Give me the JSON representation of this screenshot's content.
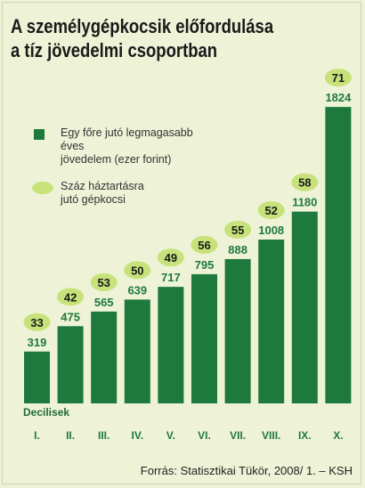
{
  "title_lines": [
    "A személygépkocsik előfordulása",
    "a tíz jövedelmi csoportban"
  ],
  "legend": {
    "income_label": "Egy főre jutó legmagasabb éves\njövedelem (ezer forint)",
    "cars_label": "Száz háztartásra\njutó gépkocsi"
  },
  "x_axis_title": "Decilisek",
  "source": "Forrás: Statisztikai Tükör, 2008/ 1. – KSH",
  "colors": {
    "bar": "#1e7a3c",
    "oval": "#c7e27a",
    "background": "#eef2d6",
    "value_label": "#1e7a3c"
  },
  "chart_data": {
    "type": "bar",
    "categories": [
      "I.",
      "II.",
      "III.",
      "IV.",
      "V.",
      "VI.",
      "VII.",
      "VIII.",
      "IX.",
      "X."
    ],
    "series": [
      {
        "name": "Egy főre jutó legmagasabb éves jövedelem (ezer forint)",
        "values": [
          319,
          475,
          565,
          639,
          717,
          795,
          888,
          1008,
          1180,
          1824
        ]
      },
      {
        "name": "Száz háztartásra jutó gépkocsi",
        "values": [
          33,
          42,
          53,
          50,
          49,
          56,
          55,
          52,
          58,
          71
        ]
      }
    ],
    "title": "A személygépkocsik előfordulása a tíz jövedelmi csoportban",
    "xlabel": "Decilisek",
    "ylabel": "",
    "grid": false,
    "legend": "top-left"
  }
}
